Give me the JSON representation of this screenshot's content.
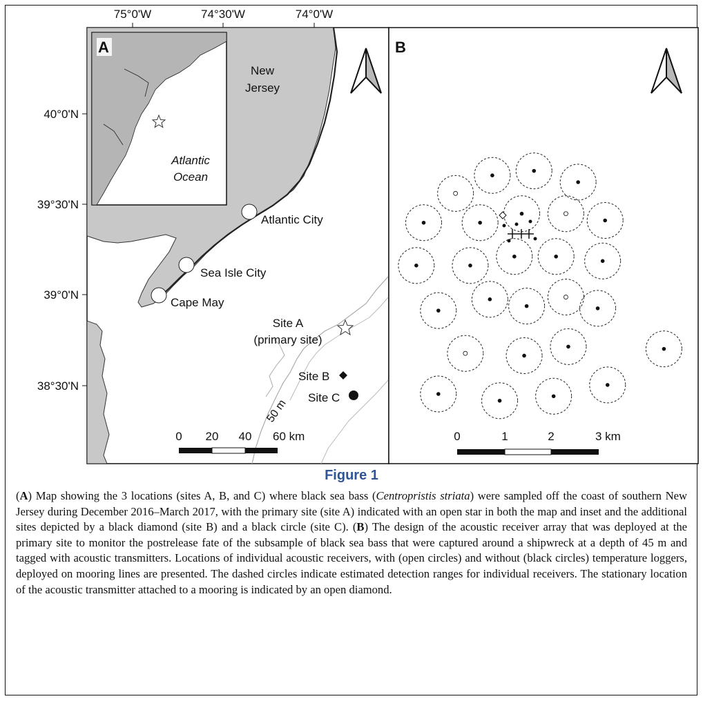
{
  "panel_a": {
    "label": "A",
    "lon_ticks": [
      "75°0'W",
      "74°30'W",
      "74°0'W"
    ],
    "lat_ticks": [
      "40°0'N",
      "39°30'N",
      "39°0'N",
      "38°30'N"
    ],
    "state_label_1": "New",
    "state_label_2": "Jersey",
    "inset_label_1": "Atlantic",
    "inset_label_2": "Ocean",
    "towns": [
      "Atlantic City",
      "Sea Isle City",
      "Cape May"
    ],
    "site_a_1": "Site A",
    "site_a_2": "(primary site)",
    "site_b": "Site B",
    "site_c": "Site C",
    "depth_label": "50 m",
    "scale_ticks": [
      "0",
      "20",
      "40",
      "60 km"
    ]
  },
  "panel_b": {
    "label": "B",
    "scale_ticks": [
      "0",
      "1",
      "2",
      "3 km"
    ],
    "receivers": [
      {
        "x": 2.3,
        "y": 2.0,
        "logger": true
      },
      {
        "x": 3.8,
        "y": 1.2,
        "logger": false
      },
      {
        "x": 5.5,
        "y": 1.0,
        "logger": false
      },
      {
        "x": 7.3,
        "y": 1.5,
        "logger": false
      },
      {
        "x": 1.0,
        "y": 3.3,
        "logger": false
      },
      {
        "x": 3.3,
        "y": 3.3,
        "logger": false
      },
      {
        "x": 5.0,
        "y": 2.9,
        "logger": false
      },
      {
        "x": 6.8,
        "y": 2.9,
        "logger": true
      },
      {
        "x": 8.4,
        "y": 3.2,
        "logger": false
      },
      {
        "x": 0.7,
        "y": 5.2,
        "logger": false
      },
      {
        "x": 2.9,
        "y": 5.2,
        "logger": false
      },
      {
        "x": 4.7,
        "y": 4.8,
        "logger": false
      },
      {
        "x": 6.4,
        "y": 4.8,
        "logger": false
      },
      {
        "x": 8.3,
        "y": 5.0,
        "logger": false
      },
      {
        "x": 1.6,
        "y": 7.2,
        "logger": false
      },
      {
        "x": 3.7,
        "y": 6.7,
        "logger": false
      },
      {
        "x": 5.2,
        "y": 7.0,
        "logger": false
      },
      {
        "x": 6.8,
        "y": 6.6,
        "logger": true
      },
      {
        "x": 8.1,
        "y": 7.1,
        "logger": false
      },
      {
        "x": 2.7,
        "y": 9.1,
        "logger": true
      },
      {
        "x": 5.1,
        "y": 9.2,
        "logger": false
      },
      {
        "x": 6.9,
        "y": 8.8,
        "logger": false
      },
      {
        "x": 10.8,
        "y": 8.9,
        "logger": false
      },
      {
        "x": 1.6,
        "y": 10.9,
        "logger": false
      },
      {
        "x": 4.1,
        "y": 11.2,
        "logger": false
      },
      {
        "x": 6.3,
        "y": 11.0,
        "logger": false
      },
      {
        "x": 8.5,
        "y": 10.5,
        "logger": false
      }
    ]
  },
  "figure_title": "Figure 1",
  "caption": [
    {
      "t": "(",
      "b": false
    },
    {
      "t": "A",
      "b": true
    },
    {
      "t": ") Map showing the 3 locations (sites A, B, and C) where black sea bass (",
      "b": false
    },
    {
      "t": "Centropristis striata",
      "i": true
    },
    {
      "t": ") were sampled off the coast of southern New Jersey during December 2016–March 2017, with the primary site (site A) indicated with an open star in both the map and inset and the additional sites depicted by a black diamond (site B) and a black circle (site C). (",
      "b": false
    },
    {
      "t": "B",
      "b": true
    },
    {
      "t": ") The design of the acoustic receiver array that was deployed at the primary site to monitor the postrelease fate of the subsample of black sea bass that were captured around a shipwreck at a depth of 45 m and tagged with acoustic transmitters. Locations of individual acoustic receivers, with (open circles) and without (black circles) temperature loggers, deployed on mooring lines are presented. The dashed circles indicate estimated detection ranges for individual receivers. The stationary location of the acoustic transmitter attached to a mooring is indicated by an open diamond.",
      "b": false
    }
  ]
}
